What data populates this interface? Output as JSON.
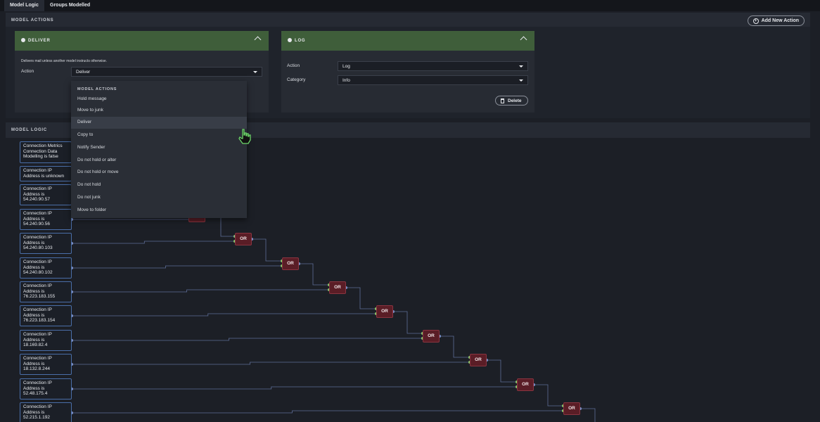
{
  "tabs": [
    {
      "label": "Model Logic",
      "active": true
    },
    {
      "label": "Groups Modelled",
      "active": false
    }
  ],
  "actions_section": {
    "title": "MODEL ACTIONS",
    "add_button_label": "Add New Action"
  },
  "deliver_card": {
    "title": "DELIVER",
    "description": "Delivers mail unless another model instructs otherwise.",
    "action_label": "Action",
    "action_value": "Deliver"
  },
  "log_card": {
    "title": "LOG",
    "action_label": "Action",
    "action_value": "Log",
    "category_label": "Category",
    "category_value": "Info",
    "delete_label": "Delete"
  },
  "dropdown": {
    "header": "MODEL ACTIONS",
    "items": [
      "Hold message",
      "Move to junk",
      "Deliver",
      "Copy to",
      "Notify Sender",
      "Do not hold or alter",
      "Do not hold or move",
      "Do not hold",
      "Do not junk",
      "Move to folder"
    ],
    "highlighted": "Deliver"
  },
  "logic_section": {
    "title": "MODEL LOGIC",
    "or_label": "OR",
    "conditions": [
      "Connection Metrics Connection Data Modelling is false",
      "Connection IP Address is unknown",
      "Connection IP Address is 54.240.90.57",
      "Connection IP Address is 54.240.90.56",
      "Connection IP Address is 54.240.80.103",
      "Connection IP Address is 54.240.80.102",
      "Connection IP Address is 76.223.183.155",
      "Connection IP Address is 76.223.183.154",
      "Connection IP Address is 18.169.82.4",
      "Connection IP Address is 18.132.8.244",
      "Connection IP Address is 52.48.175.4",
      "Connection IP Address is 52.215.1.192"
    ]
  },
  "colors": {
    "card_header": "#3f5e3a",
    "node_border": "#4a6ea8",
    "or_gate": "#5a1d26",
    "wire": "#7b8fc7"
  }
}
